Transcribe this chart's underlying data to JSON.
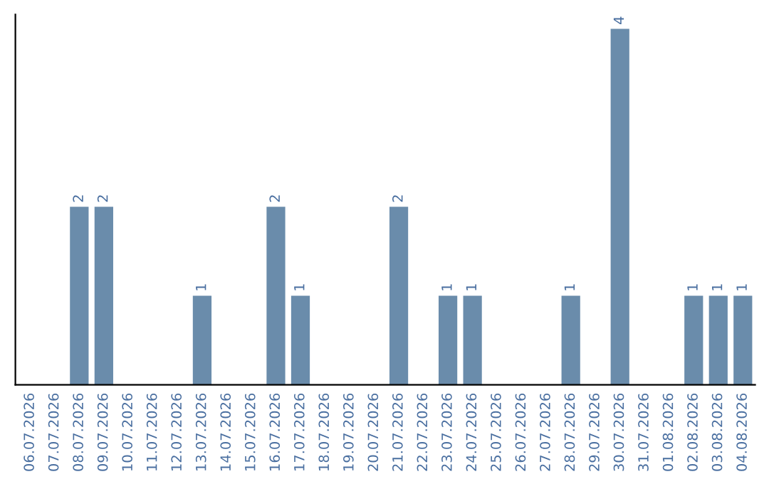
{
  "chart_data": {
    "type": "bar",
    "categories": [
      "06.07.2026",
      "07.07.2026",
      "08.07.2026",
      "09.07.2026",
      "10.07.2026",
      "11.07.2026",
      "12.07.2026",
      "13.07.2026",
      "14.07.2026",
      "15.07.2026",
      "16.07.2026",
      "17.07.2026",
      "18.07.2026",
      "19.07.2026",
      "20.07.2026",
      "21.07.2026",
      "22.07.2026",
      "23.07.2026",
      "24.07.2026",
      "25.07.2026",
      "26.07.2026",
      "27.07.2026",
      "28.07.2026",
      "29.07.2026",
      "30.07.2026",
      "31.07.2026",
      "01.08.2026",
      "02.08.2026",
      "03.08.2026",
      "04.08.2026"
    ],
    "values": [
      0,
      0,
      2,
      2,
      0,
      0,
      0,
      1,
      0,
      0,
      2,
      1,
      0,
      0,
      0,
      2,
      0,
      1,
      1,
      0,
      0,
      0,
      1,
      0,
      4,
      0,
      0,
      1,
      1,
      1
    ],
    "value_labels": [
      null,
      null,
      "2",
      "2",
      null,
      null,
      null,
      "1",
      null,
      null,
      "2",
      "1",
      null,
      null,
      null,
      "2",
      null,
      "1",
      "1",
      null,
      null,
      null,
      "1",
      null,
      "4",
      null,
      null,
      "1",
      "1",
      "1"
    ],
    "color": "#6a8cab",
    "grid": false,
    "legend": false,
    "tick_labels": "x"
  }
}
